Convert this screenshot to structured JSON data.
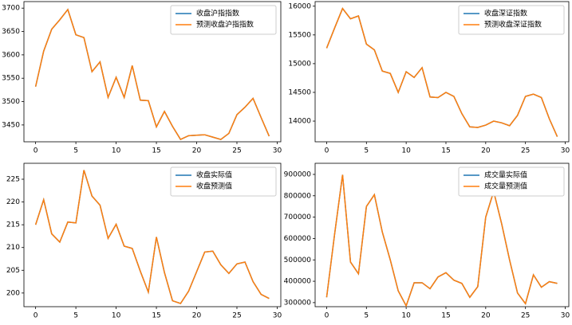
{
  "chart_data": [
    {
      "type": "line",
      "x": [
        0,
        1,
        2,
        3,
        4,
        5,
        6,
        7,
        8,
        9,
        10,
        11,
        12,
        13,
        14,
        15,
        16,
        17,
        18,
        19,
        20,
        21,
        22,
        23,
        24,
        25,
        26,
        27,
        28,
        29
      ],
      "series": [
        {
          "name": "收盘沪指指数",
          "color": "#1f77b4",
          "values": [
            3532,
            3608,
            3655,
            3675,
            3697,
            3643,
            3637,
            3564,
            3585,
            3509,
            3552,
            3509,
            3577,
            3503,
            3502,
            3446,
            3479,
            3447,
            3419,
            3427,
            3428,
            3429,
            3424,
            3419,
            3432,
            3472,
            3488,
            3507,
            3466,
            3426
          ]
        },
        {
          "name": "预测收盘沪指指数",
          "color": "#ff7f0e",
          "values": [
            3532,
            3608,
            3655,
            3675,
            3697,
            3643,
            3637,
            3564,
            3585,
            3509,
            3552,
            3509,
            3577,
            3503,
            3502,
            3446,
            3479,
            3447,
            3419,
            3427,
            3428,
            3429,
            3424,
            3419,
            3432,
            3472,
            3488,
            3507,
            3466,
            3426
          ]
        }
      ],
      "xlim": [
        -1.45,
        30.45
      ],
      "xticks": [
        0,
        5,
        10,
        15,
        20,
        25,
        30
      ],
      "ylim": [
        3414,
        3714
      ],
      "yticks": [
        3450,
        3500,
        3550,
        3600,
        3650,
        3700
      ],
      "legend": "upper right"
    },
    {
      "type": "line",
      "x": [
        0,
        1,
        2,
        3,
        4,
        5,
        6,
        7,
        8,
        9,
        10,
        11,
        12,
        13,
        14,
        15,
        16,
        17,
        18,
        19,
        20,
        21,
        22,
        23,
        24,
        25,
        26,
        27,
        28,
        29
      ],
      "series": [
        {
          "name": "收盘深证指数",
          "color": "#1f77b4",
          "values": [
            15270,
            15620,
            15960,
            15780,
            15830,
            15340,
            15240,
            14870,
            14830,
            14500,
            14860,
            14760,
            14930,
            14420,
            14410,
            14500,
            14430,
            14130,
            13900,
            13890,
            13930,
            14000,
            13970,
            13920,
            14100,
            14430,
            14470,
            14410,
            14040,
            13730
          ]
        },
        {
          "name": "预测收盘深证指数",
          "color": "#ff7f0e",
          "values": [
            15270,
            15620,
            15960,
            15780,
            15830,
            15340,
            15240,
            14870,
            14830,
            14500,
            14860,
            14760,
            14930,
            14420,
            14410,
            14500,
            14430,
            14130,
            13900,
            13890,
            13930,
            14000,
            13970,
            13920,
            14100,
            14430,
            14470,
            14410,
            14040,
            13730
          ]
        }
      ],
      "xlim": [
        -1.45,
        30.45
      ],
      "xticks": [
        0,
        5,
        10,
        15,
        20,
        25,
        30
      ],
      "ylim": [
        13640,
        16080
      ],
      "yticks": [
        14000,
        14500,
        15000,
        15500,
        16000
      ],
      "legend": "upper right"
    },
    {
      "type": "line",
      "x": [
        0,
        1,
        2,
        3,
        4,
        5,
        6,
        7,
        8,
        9,
        10,
        11,
        12,
        13,
        14,
        15,
        16,
        17,
        18,
        19,
        20,
        21,
        22,
        23,
        24,
        25,
        26,
        27,
        28,
        29
      ],
      "series": [
        {
          "name": "收盘实际值",
          "color": "#1f77b4",
          "values": [
            215,
            220.5,
            213,
            211.2,
            215.6,
            215.4,
            227,
            221.3,
            219.3,
            212,
            215.1,
            210.3,
            209.8,
            204.8,
            200.2,
            212.3,
            204.5,
            198.3,
            197.7,
            200.4,
            204.7,
            209,
            209.2,
            206.2,
            204.3,
            206.4,
            206.8,
            202.5,
            199.7,
            198.8
          ]
        },
        {
          "name": "收盘预测值",
          "color": "#ff7f0e",
          "values": [
            215,
            220.5,
            213,
            211.2,
            215.6,
            215.4,
            227,
            221.3,
            219.3,
            212,
            215.1,
            210.3,
            209.8,
            204.8,
            200.2,
            212.3,
            204.5,
            198.3,
            197.7,
            200.4,
            204.7,
            209,
            209.2,
            206.2,
            204.3,
            206.4,
            206.8,
            202.5,
            199.7,
            198.8
          ]
        }
      ],
      "xlim": [
        -1.45,
        30.45
      ],
      "xticks": [
        0,
        5,
        10,
        15,
        20,
        25,
        30
      ],
      "ylim": [
        197,
        228.5
      ],
      "yticks": [
        200,
        205,
        210,
        215,
        220,
        225
      ],
      "legend": "upper right"
    },
    {
      "type": "line",
      "x": [
        0,
        1,
        2,
        3,
        4,
        5,
        6,
        7,
        8,
        9,
        10,
        11,
        12,
        13,
        14,
        15,
        16,
        17,
        18,
        19,
        20,
        21,
        22,
        23,
        24,
        25,
        26,
        27,
        28,
        29
      ],
      "series": [
        {
          "name": "成交量实际值",
          "color": "#1f77b4",
          "values": [
            325000,
            620000,
            898000,
            490000,
            435000,
            750000,
            805000,
            630000,
            500000,
            355000,
            285000,
            393000,
            393000,
            365000,
            420000,
            440000,
            405000,
            390000,
            325000,
            375000,
            700000,
            820000,
            670000,
            500000,
            345000,
            295000,
            430000,
            372000,
            398000,
            390000
          ]
        },
        {
          "name": "成交量预测值",
          "color": "#ff7f0e",
          "values": [
            325000,
            620000,
            898000,
            490000,
            435000,
            750000,
            805000,
            630000,
            500000,
            355000,
            285000,
            393000,
            393000,
            365000,
            420000,
            440000,
            405000,
            390000,
            325000,
            375000,
            700000,
            820000,
            670000,
            500000,
            345000,
            295000,
            430000,
            372000,
            398000,
            390000
          ]
        }
      ],
      "xlim": [
        -1.45,
        30.45
      ],
      "xticks": [
        0,
        5,
        10,
        15,
        20,
        25,
        30
      ],
      "ylim": [
        281000,
        952000
      ],
      "yticks": [
        300000,
        400000,
        500000,
        600000,
        700000,
        800000,
        900000
      ],
      "legend": "upper right"
    }
  ]
}
